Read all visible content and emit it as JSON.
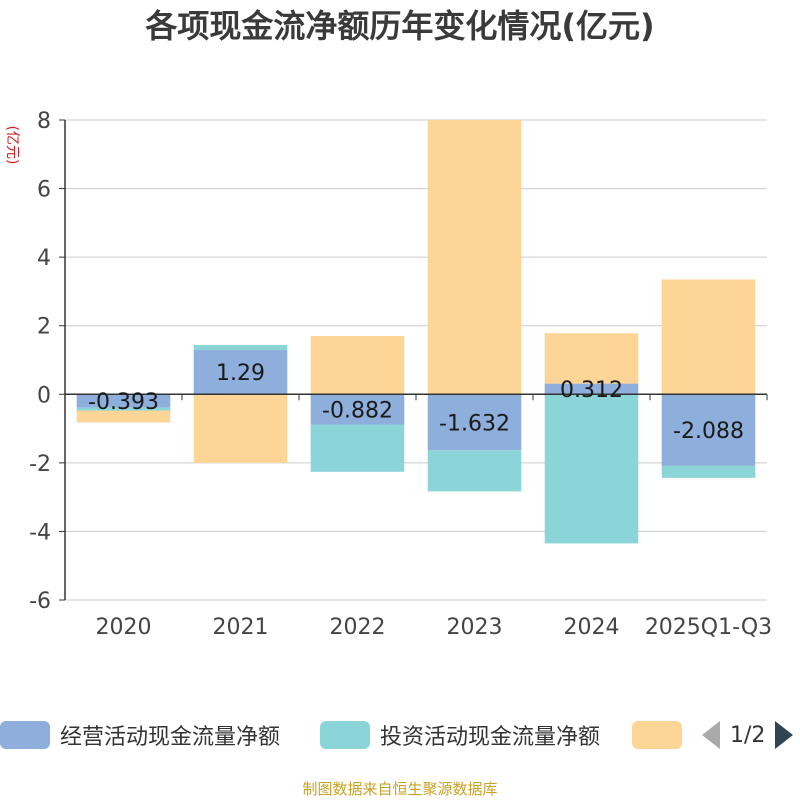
{
  "title": "各项现金流净额历年变化情况(亿元)",
  "unit": "(亿元)",
  "source": "制图数据来自恒生聚源数据库",
  "legend": {
    "items": [
      {
        "label": "经营活动现金流量净额",
        "color": "#8eaedb"
      },
      {
        "label": "投资活动现金流量净额",
        "color": "#8bd5d8"
      },
      {
        "label": "",
        "color": "#fdd597"
      }
    ],
    "page": "1/2"
  },
  "chart_data": {
    "type": "bar",
    "stacked": true,
    "title": "各项现金流净额历年变化情况(亿元)",
    "ylabel": "(亿元)",
    "ylim": [
      -6,
      8
    ],
    "yticks": [
      "8",
      "6",
      "4",
      "2",
      "0",
      "-2",
      "-4",
      "-6"
    ],
    "categories": [
      "2020",
      "2021",
      "2022",
      "2023",
      "2024",
      "2025Q1-Q3"
    ],
    "series": [
      {
        "name": "经营活动现金流量净额",
        "color": "#8eaedb",
        "values": [
          -0.393,
          1.29,
          -0.882,
          -1.632,
          0.312,
          -2.088
        ],
        "labels": [
          "-0.393",
          "1.29",
          "-0.882",
          "-1.632",
          "0.312",
          "-2.088"
        ]
      },
      {
        "name": "投资活动现金流量净额",
        "color": "#8bd5d8",
        "values": [
          -0.08,
          0.15,
          -1.38,
          -1.2,
          -4.35,
          -0.35
        ]
      },
      {
        "name": "",
        "color": "#fdd597",
        "values": [
          -0.35,
          -2.0,
          1.7,
          8.0,
          1.47,
          3.35
        ]
      }
    ]
  }
}
